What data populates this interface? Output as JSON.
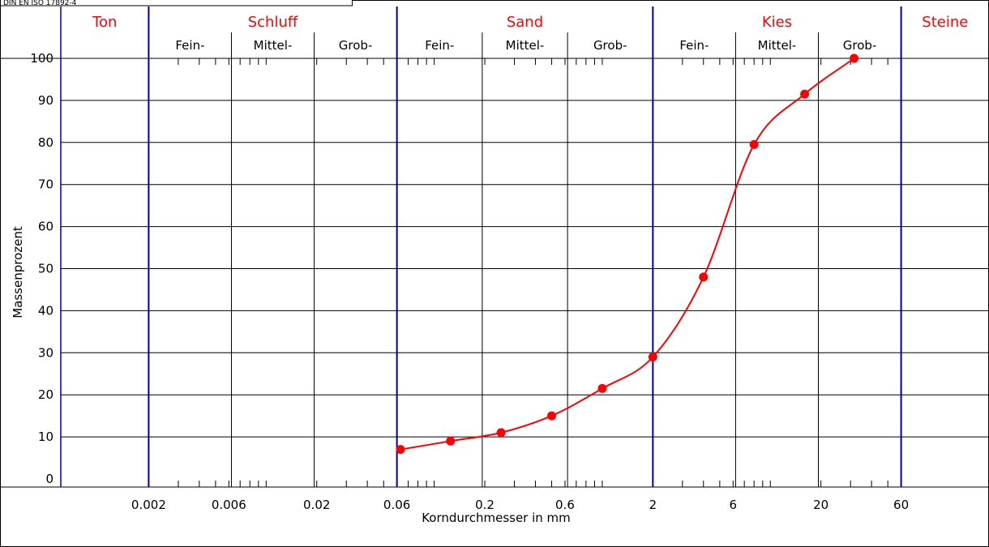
{
  "standard_label": "DIN EN ISO 17892-4",
  "chart_data": {
    "type": "line",
    "title": "",
    "xlabel": "Korndurchmesser in mm",
    "ylabel": "Massenprozent",
    "x_scale": "log",
    "xlim": [
      0.0006,
      200
    ],
    "ylim": [
      0,
      100
    ],
    "x_ticks": [
      "0.002",
      "0.006",
      "0.02",
      "0.06",
      "0.2",
      "0.6",
      "2",
      "6",
      "20",
      "60"
    ],
    "y_ticks": [
      "0",
      "10",
      "20",
      "30",
      "40",
      "50",
      "60",
      "70",
      "80",
      "90",
      "100"
    ],
    "grid": true,
    "classes": [
      {
        "name": "Ton",
        "range": [
          0.0006,
          0.002
        ],
        "subclasses": []
      },
      {
        "name": "Schluff",
        "range": [
          0.002,
          0.06
        ],
        "subclasses": [
          "Fein-",
          "Mittel-",
          "Grob-"
        ]
      },
      {
        "name": "Sand",
        "range": [
          0.06,
          2
        ],
        "subclasses": [
          "Fein-",
          "Mittel-",
          "Grob-"
        ]
      },
      {
        "name": "Kies",
        "range": [
          2,
          60
        ],
        "subclasses": [
          "Fein-",
          "Mittel-",
          "Grob-"
        ]
      },
      {
        "name": "Steine",
        "range": [
          60,
          200
        ],
        "subclasses": []
      }
    ],
    "series": [
      {
        "x": [
          0.063,
          0.125,
          0.25,
          0.5,
          1,
          2,
          4,
          8,
          16,
          31.5
        ],
        "y": [
          7,
          9,
          11,
          15,
          21.5,
          29,
          48,
          79.5,
          91.5,
          100
        ]
      }
    ],
    "colors": {
      "curve": "#ff0000",
      "boundary": "#000099",
      "class_label": "#ff0000"
    }
  }
}
